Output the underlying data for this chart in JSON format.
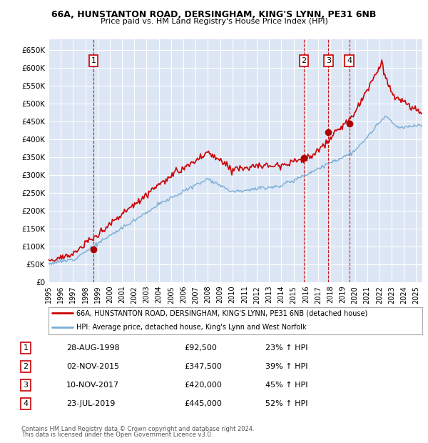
{
  "title1": "66A, HUNSTANTON ROAD, DERSINGHAM, KING'S LYNN, PE31 6NB",
  "title2": "Price paid vs. HM Land Registry's House Price Index (HPI)",
  "ylabel_ticks": [
    "£0",
    "£50K",
    "£100K",
    "£150K",
    "£200K",
    "£250K",
    "£300K",
    "£350K",
    "£400K",
    "£450K",
    "£500K",
    "£550K",
    "£600K",
    "£650K"
  ],
  "ytick_values": [
    0,
    50000,
    100000,
    150000,
    200000,
    250000,
    300000,
    350000,
    400000,
    450000,
    500000,
    550000,
    600000,
    650000
  ],
  "xlim_start": 1995.0,
  "xlim_end": 2025.5,
  "ylim_bottom": 0,
  "ylim_top": 680000,
  "plot_bg_color": "#dce6f5",
  "grid_color": "#ffffff",
  "sale_line_color": "#cc0000",
  "hpi_line_color": "#7aadd4",
  "sale_marker_color": "#aa0000",
  "vline_color": "#cc0000",
  "transactions": [
    {
      "num": 1,
      "date_x": 1998.66,
      "price": 92500,
      "label": "1"
    },
    {
      "num": 2,
      "date_x": 2015.84,
      "price": 347500,
      "label": "2"
    },
    {
      "num": 3,
      "date_x": 2017.84,
      "price": 420000,
      "label": "3"
    },
    {
      "num": 4,
      "date_x": 2019.55,
      "price": 445000,
      "label": "4"
    }
  ],
  "legend_line1": "66A, HUNSTANTON ROAD, DERSINGHAM, KING'S LYNN, PE31 6NB (detached house)",
  "legend_line2": "HPI: Average price, detached house, King's Lynn and West Norfolk",
  "table_rows": [
    {
      "num": "1",
      "date": "28-AUG-1998",
      "price": "£92,500",
      "change": "23% ↑ HPI"
    },
    {
      "num": "2",
      "date": "02-NOV-2015",
      "price": "£347,500",
      "change": "39% ↑ HPI"
    },
    {
      "num": "3",
      "date": "10-NOV-2017",
      "price": "£420,000",
      "change": "45% ↑ HPI"
    },
    {
      "num": "4",
      "date": "23-JUL-2019",
      "price": "£445,000",
      "change": "52% ↑ HPI"
    }
  ],
  "footnote1": "Contains HM Land Registry data © Crown copyright and database right 2024.",
  "footnote2": "This data is licensed under the Open Government Licence v3.0."
}
